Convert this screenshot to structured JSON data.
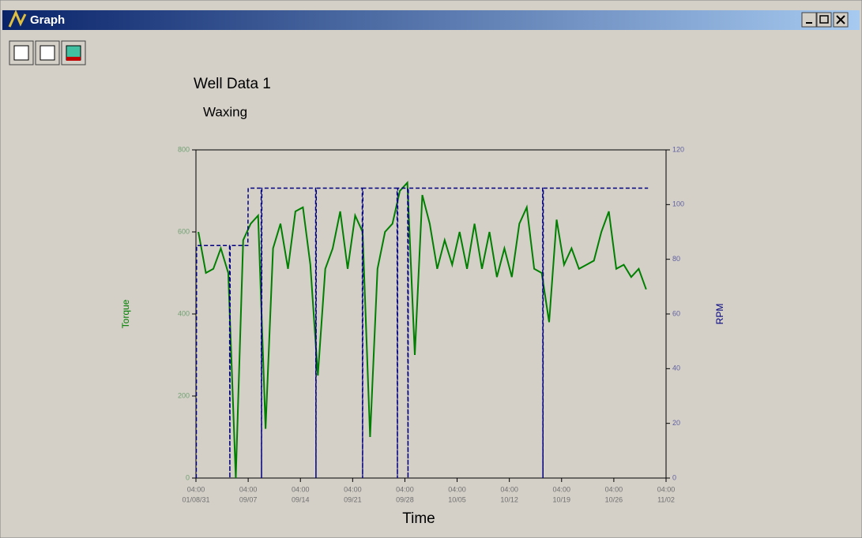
{
  "window": {
    "title": "Graph"
  },
  "chart_data": {
    "type": "line",
    "title": "Well Data 1",
    "subtitle": "Waxing",
    "xlabel": "Time",
    "ylabel": "Torque",
    "y2label": "RPM",
    "ylim": [
      0,
      800
    ],
    "yticks": [
      0,
      200,
      400,
      600,
      800
    ],
    "y2lim": [
      0,
      120
    ],
    "y2ticks": [
      0,
      20,
      40,
      60,
      80,
      100,
      120
    ],
    "xlim": [
      "2001-08-31T04:00",
      "2001-11-02T04:00"
    ],
    "xticks": [
      {
        "value": "2001-08-31T04:00",
        "label": [
          "04:00",
          "01/08/31"
        ]
      },
      {
        "value": "2001-09-07T04:00",
        "label": [
          "04:00",
          "09/07"
        ]
      },
      {
        "value": "2001-09-14T04:00",
        "label": [
          "04:00",
          "09/14"
        ]
      },
      {
        "value": "2001-09-21T04:00",
        "label": [
          "04:00",
          "09/21"
        ]
      },
      {
        "value": "2001-09-28T04:00",
        "label": [
          "04:00",
          "09/28"
        ]
      },
      {
        "value": "2001-10-05T04:00",
        "label": [
          "04:00",
          "10/05"
        ]
      },
      {
        "value": "2001-10-12T04:00",
        "label": [
          "04:00",
          "10/12"
        ]
      },
      {
        "value": "2001-10-19T04:00",
        "label": [
          "04:00",
          "10/19"
        ]
      },
      {
        "value": "2001-10-26T04:00",
        "label": [
          "04:00",
          "10/26"
        ]
      },
      {
        "value": "2001-11-02T04:00",
        "label": [
          "04:00",
          "11/02"
        ]
      }
    ],
    "series": [
      {
        "color": "#008000",
        "line_style": "solid",
        "x": [
          "2001-08-31T12:00",
          "2001-09-01T12:00",
          "2001-09-02T12:00",
          "2001-09-03T12:00",
          "2001-09-04T12:00",
          "2001-09-05T12:00",
          "2001-09-06T12:00",
          "2001-09-07T12:00",
          "2001-09-08T12:00",
          "2001-09-09T12:00",
          "2001-09-10T12:00",
          "2001-09-11T12:00",
          "2001-09-12T12:00",
          "2001-09-13T12:00",
          "2001-09-14T12:00",
          "2001-09-15T12:00",
          "2001-09-16T12:00",
          "2001-09-17T12:00",
          "2001-09-18T12:00",
          "2001-09-19T12:00",
          "2001-09-20T12:00",
          "2001-09-21T12:00",
          "2001-09-22T12:00",
          "2001-09-23T12:00",
          "2001-09-24T12:00",
          "2001-09-25T12:00",
          "2001-09-26T12:00",
          "2001-09-27T12:00",
          "2001-09-28T12:00",
          "2001-09-29T12:00",
          "2001-09-30T12:00",
          "2001-10-01T12:00",
          "2001-10-02T12:00",
          "2001-10-03T12:00",
          "2001-10-04T12:00",
          "2001-10-05T12:00",
          "2001-10-06T12:00",
          "2001-10-07T12:00",
          "2001-10-08T12:00",
          "2001-10-09T12:00",
          "2001-10-10T12:00",
          "2001-10-11T12:00",
          "2001-10-12T12:00",
          "2001-10-13T12:00",
          "2001-10-14T12:00",
          "2001-10-15T12:00",
          "2001-10-16T12:00",
          "2001-10-17T12:00",
          "2001-10-18T12:00",
          "2001-10-19T12:00",
          "2001-10-20T12:00",
          "2001-10-21T12:00",
          "2001-10-22T12:00",
          "2001-10-23T12:00",
          "2001-10-24T12:00",
          "2001-10-25T12:00",
          "2001-10-26T12:00",
          "2001-10-27T12:00",
          "2001-10-28T12:00",
          "2001-10-29T12:00",
          "2001-10-30T12:00"
        ],
        "values": [
          600,
          500,
          510,
          560,
          500,
          0,
          580,
          620,
          640,
          120,
          560,
          620,
          510,
          650,
          660,
          520,
          250,
          510,
          560,
          650,
          510,
          640,
          600,
          100,
          510,
          600,
          620,
          700,
          720,
          300,
          690,
          620,
          510,
          580,
          520,
          600,
          510,
          620,
          510,
          600,
          490,
          560,
          490,
          620,
          660,
          510,
          500,
          380,
          630,
          520,
          560,
          510,
          520,
          530,
          600,
          650,
          510,
          520,
          490,
          510,
          460
        ]
      },
      {
        "color": "#000080",
        "line_style": "dashed",
        "axis": "y2",
        "x": [
          "2001-08-31T05:00",
          "2001-08-31T06:00",
          "2001-09-04T16:00",
          "2001-09-04T17:00",
          "2001-09-04T18:00",
          "2001-09-07T03:00",
          "2001-09-07T04:00",
          "2001-09-08T22:00",
          "2001-09-08T23:00",
          "2001-09-09T00:00",
          "2001-09-16T05:00",
          "2001-09-16T06:00",
          "2001-09-16T07:00",
          "2001-09-22T11:00",
          "2001-09-22T12:00",
          "2001-09-22T13:00",
          "2001-09-27T03:00",
          "2001-09-27T04:00",
          "2001-09-27T05:00",
          "2001-09-28T13:00",
          "2001-09-28T14:00",
          "2001-09-28T15:00",
          "2001-10-16T15:00",
          "2001-10-16T16:00",
          "2001-10-16T17:00",
          "2001-10-30T18:00"
        ],
        "values": [
          0,
          85,
          85,
          0,
          85,
          85,
          106,
          106,
          0,
          106,
          106,
          0,
          106,
          106,
          0,
          106,
          106,
          0,
          106,
          106,
          0,
          106,
          106,
          0,
          106,
          106
        ]
      }
    ]
  }
}
